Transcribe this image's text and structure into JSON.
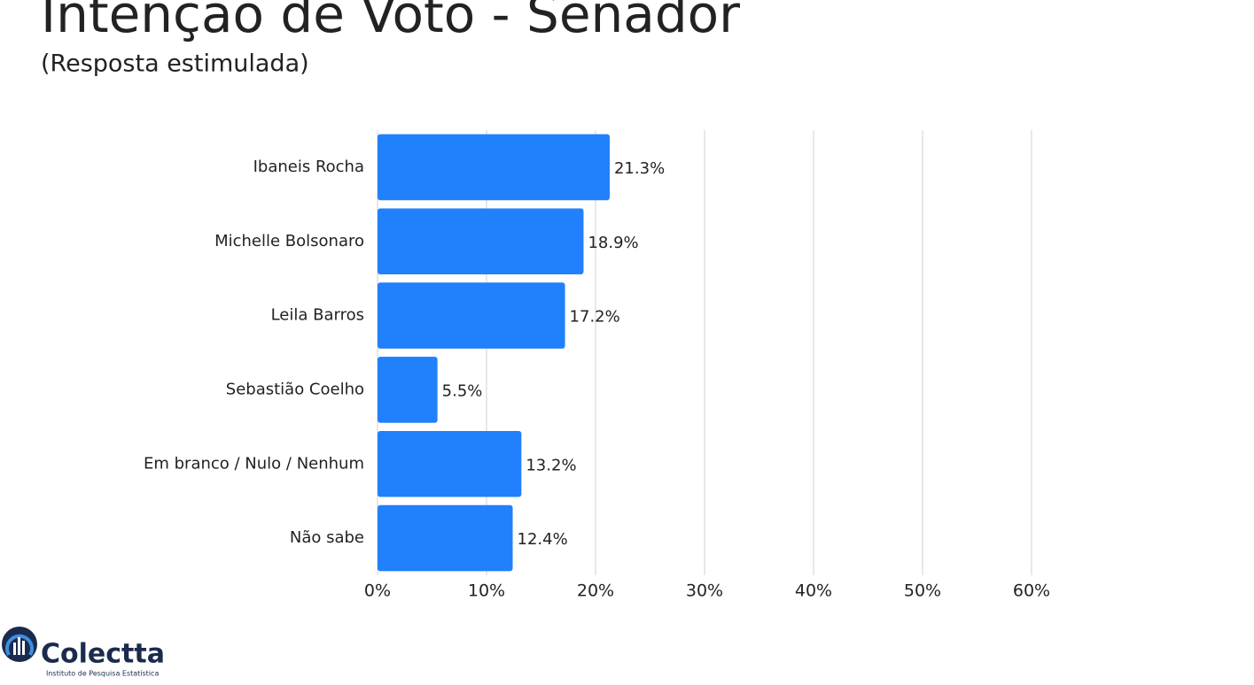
{
  "chart_data": {
    "type": "bar",
    "orientation": "horizontal",
    "title": "Intenção de Voto - Senador",
    "subtitle": "(Resposta estimulada)",
    "categories": [
      "Ibaneis Rocha",
      "Michelle Bolsonaro",
      "Leila Barros",
      "Sebastião Coelho",
      "Em branco / Nulo / Nenhum",
      "Não sabe"
    ],
    "values": [
      21.3,
      18.9,
      17.2,
      5.5,
      13.2,
      12.4
    ],
    "value_labels": [
      "21.3%",
      "18.9%",
      "17.2%",
      "5.5%",
      "13.2%",
      "12.4%"
    ],
    "color": "#2180fb",
    "xlim": [
      0,
      60
    ],
    "xticks": [
      {
        "value": 0,
        "label": "0%"
      },
      {
        "value": 10,
        "label": "10%"
      },
      {
        "value": 20,
        "label": "20%"
      },
      {
        "value": 30,
        "label": "30%"
      },
      {
        "value": 40,
        "label": "40%"
      },
      {
        "value": 50,
        "label": "50%"
      },
      {
        "value": 60,
        "label": "60%"
      }
    ],
    "grid": true
  },
  "logo": {
    "name": "Colectta",
    "tagline": "Instituto de Pesquisa Estatística"
  }
}
